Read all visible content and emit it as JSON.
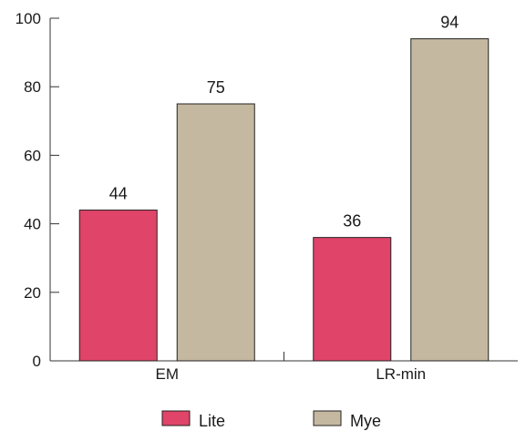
{
  "chart_data": {
    "type": "bar",
    "categories": [
      "EM",
      "LR-min"
    ],
    "series": [
      {
        "name": "Lite",
        "values": [
          44,
          36
        ],
        "color": "#e04468"
      },
      {
        "name": "Mye",
        "values": [
          75,
          94
        ],
        "color": "#c5b8a0"
      }
    ],
    "ylim": [
      0,
      100
    ],
    "yticks": [
      0,
      20,
      40,
      60,
      80,
      100
    ],
    "title": "",
    "xlabel": "",
    "ylabel": "",
    "legend_position": "bottom-center",
    "grid": false
  }
}
